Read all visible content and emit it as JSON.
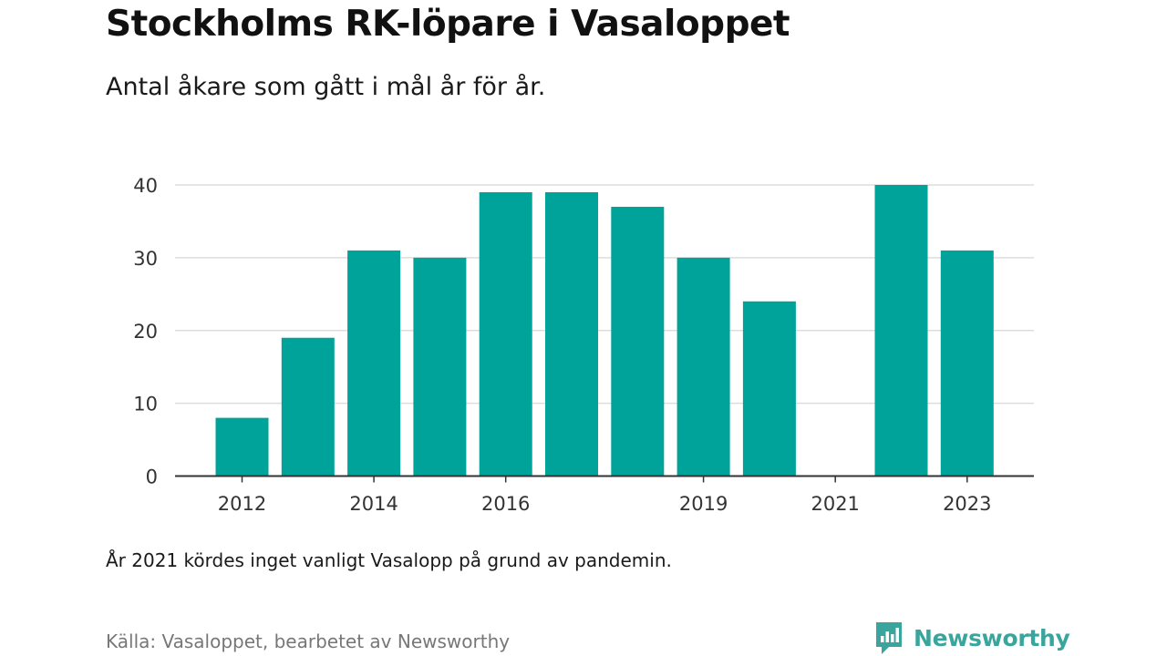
{
  "title": "Stockholms RK-löpare i Vasaloppet",
  "subtitle": "Antal åkare som gått i mål år för år.",
  "note": "År 2021 kördes inget vanligt Vasalopp på grund av pandemin.",
  "source": "Källa: Vasaloppet, bearbetet av Newsworthy",
  "brand": {
    "name": "Newsworthy",
    "icon": "newsworthy-logo-icon",
    "color": "#3aa59c"
  },
  "chart_data": {
    "type": "bar",
    "categories": [
      "2012",
      "2013",
      "2014",
      "2015",
      "2016",
      "2017",
      "2018",
      "2019",
      "2020",
      "2021",
      "2022",
      "2023"
    ],
    "values": [
      8,
      19,
      31,
      30,
      39,
      39,
      37,
      30,
      24,
      0,
      40,
      31
    ],
    "x_tick_labels": [
      "2012",
      "2014",
      "2016",
      "2019",
      "2021",
      "2023"
    ],
    "y_ticks": [
      0,
      10,
      20,
      30,
      40
    ],
    "ylim": [
      0,
      40
    ],
    "grid": true,
    "bar_color": "#00a39a"
  }
}
